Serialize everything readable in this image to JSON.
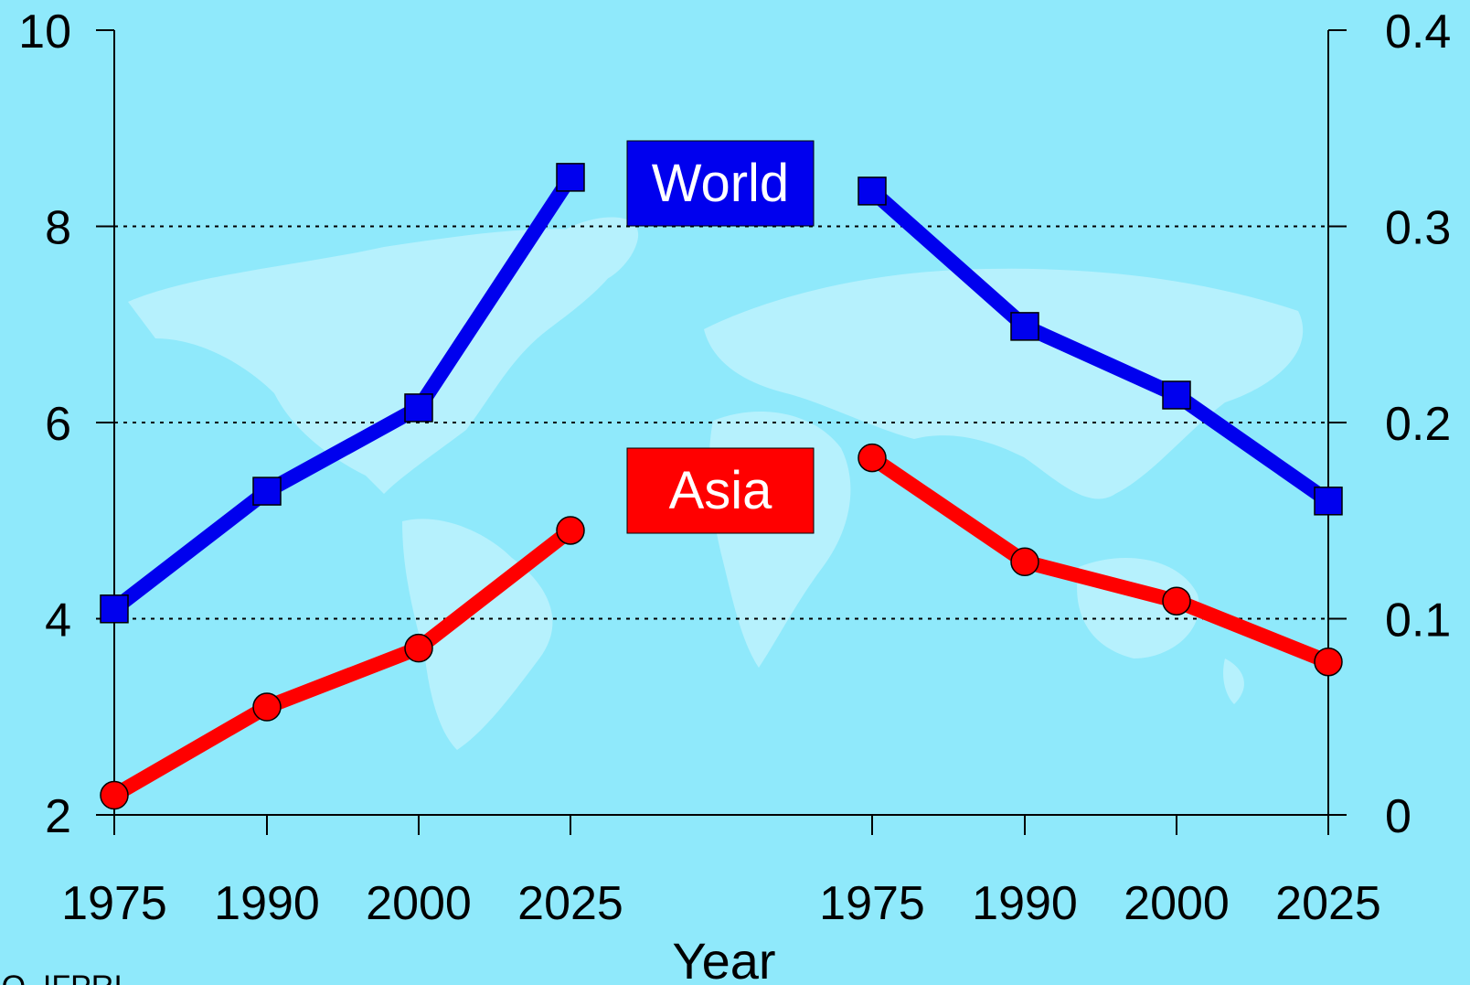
{
  "chart_data": {
    "type": "line",
    "xlabel": "Year",
    "source": "FAO, IFPRI",
    "categories": [
      "1975",
      "1990",
      "2000",
      "2025"
    ],
    "left_axis": {
      "ylim": [
        2,
        10
      ],
      "ticks": [
        "2",
        "4",
        "6",
        "8",
        "10"
      ]
    },
    "right_axis": {
      "ylim": [
        0,
        0.4
      ],
      "ticks": [
        "0",
        "0.1",
        "0.2",
        "0.3",
        "0.4"
      ]
    },
    "gridlines": [
      4,
      6,
      8
    ],
    "panels": [
      {
        "axis": "left",
        "series": [
          {
            "name": "World",
            "color": "#0000ee",
            "marker": "square",
            "values": [
              4.1,
              5.3,
              6.15,
              8.5
            ]
          },
          {
            "name": "Asia",
            "color": "#ff0000",
            "marker": "circle",
            "values": [
              2.2,
              3.1,
              3.7,
              4.9
            ]
          }
        ]
      },
      {
        "axis": "right",
        "series": [
          {
            "name": "World",
            "color": "#0000ee",
            "marker": "square",
            "values": [
              0.318,
              0.249,
              0.214,
              0.16
            ]
          },
          {
            "name": "Asia",
            "color": "#ff0000",
            "marker": "circle",
            "values": [
              0.182,
              0.129,
              0.109,
              0.078
            ]
          }
        ]
      }
    ],
    "legend": [
      {
        "label": "World",
        "color": "#0000ee"
      },
      {
        "label": "Asia",
        "color": "#ff0000"
      }
    ]
  }
}
